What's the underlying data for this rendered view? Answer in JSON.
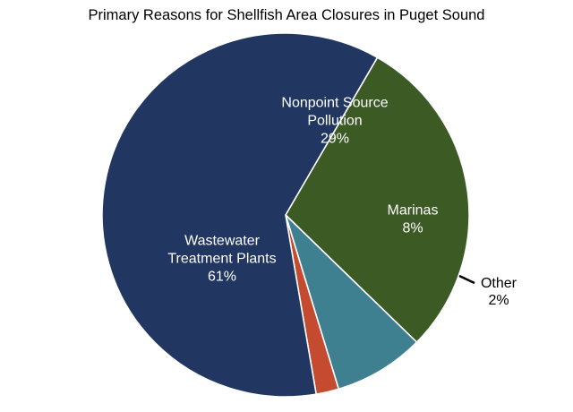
{
  "chart_data": {
    "type": "pie",
    "title": "Primary Reasons for Shellfish Area Closures in Puget Sound",
    "slices": [
      {
        "key": "npsp",
        "label_lines": [
          "Nonpoint Source",
          "Pollution"
        ],
        "value_label": "29%",
        "value": 29,
        "color": "#3b5a24",
        "label_color": "#ffffff"
      },
      {
        "key": "marinas",
        "label_lines": [
          "Marinas"
        ],
        "value_label": "8%",
        "value": 8,
        "color": "#3e8090",
        "label_color": "#ffffff"
      },
      {
        "key": "other",
        "label_lines": [
          "Other"
        ],
        "value_label": "2%",
        "value": 2,
        "color": "#c44a30",
        "label_color": "#000000"
      },
      {
        "key": "wwtp",
        "label_lines": [
          "Wastewater",
          "Treatment Plants"
        ],
        "value_label": "61%",
        "value": 61,
        "color": "#213762",
        "label_color": "#ffffff"
      }
    ]
  }
}
